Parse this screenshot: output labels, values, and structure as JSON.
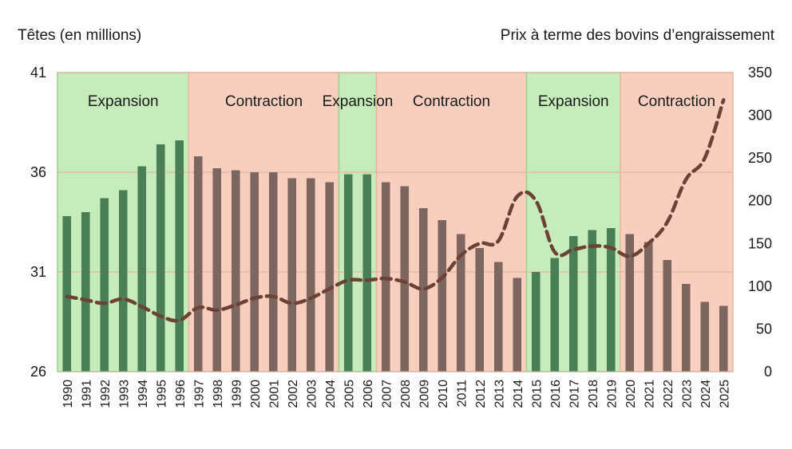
{
  "chart_data": {
    "type": "bar",
    "title": "",
    "y_left_title": "Têtes (en millions)",
    "y_right_title": "Prix à terme des bovins d’engraissement",
    "y_left": {
      "min": 26,
      "max": 41,
      "ticks": [
        26,
        31,
        36,
        41
      ]
    },
    "y_right": {
      "min": 0,
      "max": 350,
      "ticks": [
        0,
        50,
        100,
        150,
        200,
        250,
        300,
        350
      ]
    },
    "categories": [
      "1990",
      "1991",
      "1992",
      "1993",
      "1994",
      "1995",
      "1996",
      "1997",
      "1998",
      "1999",
      "2000",
      "2001",
      "2002",
      "2003",
      "2004",
      "2005",
      "2006",
      "2007",
      "2008",
      "2009",
      "2010",
      "2011",
      "2012",
      "2013",
      "2014",
      "2015",
      "2016",
      "2017",
      "2018",
      "2019",
      "2020",
      "2021",
      "2022",
      "2023",
      "2024",
      "2025"
    ],
    "series": [
      {
        "name": "Têtes (en millions)",
        "kind": "bar",
        "axis": "left",
        "values": [
          33.8,
          34.0,
          34.7,
          35.1,
          36.3,
          37.4,
          37.6,
          36.8,
          36.2,
          36.1,
          36.0,
          36.0,
          35.7,
          35.7,
          35.5,
          35.9,
          35.9,
          35.5,
          35.3,
          34.2,
          33.6,
          32.9,
          32.2,
          31.5,
          30.7,
          31.0,
          31.7,
          32.8,
          33.1,
          33.2,
          32.9,
          32.5,
          31.6,
          30.4,
          29.5,
          29.3
        ]
      },
      {
        "name": "Prix à terme des bovins d’engraissement",
        "kind": "line",
        "axis": "right",
        "style": "dashed",
        "values": [
          88,
          84,
          80,
          85,
          76,
          65,
          60,
          75,
          72,
          78,
          86,
          88,
          80,
          86,
          97,
          107,
          107,
          109,
          105,
          97,
          110,
          136,
          150,
          153,
          205,
          200,
          140,
          143,
          147,
          145,
          135,
          150,
          175,
          225,
          250,
          318
        ]
      }
    ],
    "phases": [
      {
        "label": "Expansion",
        "type": "expansion",
        "from": "1990",
        "to": "1996"
      },
      {
        "label": "Contraction",
        "type": "contraction",
        "from": "1997",
        "to": "2004"
      },
      {
        "label": "Expansion",
        "type": "expansion",
        "from": "2005",
        "to": "2006"
      },
      {
        "label": "Contraction",
        "type": "contraction",
        "from": "2007",
        "to": "2014"
      },
      {
        "label": "Expansion",
        "type": "expansion",
        "from": "2015",
        "to": "2019"
      },
      {
        "label": "Contraction",
        "type": "contraction",
        "from": "2020",
        "to": "2025"
      }
    ],
    "colors": {
      "expansion_bg": "#c6ecbc",
      "contraction_bg": "#f8cfbe",
      "expansion_border": "#9ad48a",
      "contraction_border": "#e8b8a4",
      "expansion_bar": "#4a7e55",
      "contraction_bar": "#7d6660",
      "price_line": "#6b4234",
      "gridline": "#e7b9a8"
    },
    "grid": true,
    "legend": "none"
  }
}
